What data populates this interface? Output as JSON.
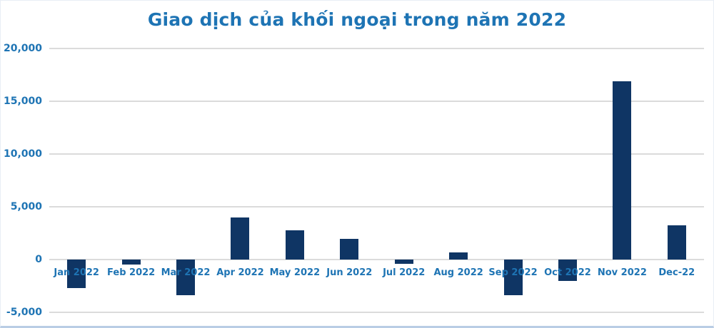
{
  "chart_data": {
    "type": "bar",
    "title": "Giao dịch của khối ngoại trong năm 2022",
    "xlabel": "",
    "ylabel": "",
    "categories": [
      "Jan 2022",
      "Feb 2022",
      "Mar 2022",
      "Apr 2022",
      "May 2022",
      "Jun 2022",
      "Jul 2022",
      "Aug 2022",
      "Sep 2022",
      "Oct 2022",
      "Nov 2022",
      "Dec-22"
    ],
    "values": [
      -2700,
      -500,
      -3400,
      4000,
      2750,
      1950,
      -400,
      700,
      -3350,
      -2000,
      16900,
      3250
    ],
    "ylim": [
      -5000,
      20000
    ],
    "yticks": [
      {
        "value": 20000,
        "label": "20,000"
      },
      {
        "value": 15000,
        "label": "15,000"
      },
      {
        "value": 10000,
        "label": "10,000"
      },
      {
        "value": 5000,
        "label": "5,000"
      },
      {
        "value": 0,
        "label": "0"
      },
      {
        "value": -5000,
        "label": "-5,000"
      }
    ],
    "grid": true,
    "legend": false,
    "colors": {
      "bar": "#0f3564",
      "title": "#1e74b4",
      "tick_labels": "#1e74b4",
      "gridline": "#dbdbdb",
      "background": "#ffffff",
      "bottom_border": "#b9cde5"
    }
  }
}
